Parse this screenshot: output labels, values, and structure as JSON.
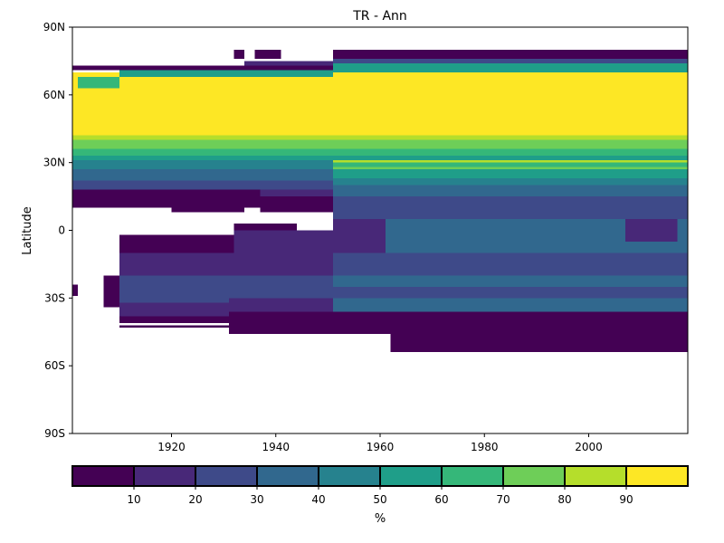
{
  "chart_data": {
    "type": "heatmap",
    "title": "TR - Ann",
    "ylabel": "Latitude",
    "xlabel": "",
    "xlim": [
      1901,
      2019
    ],
    "ylim": [
      -90,
      90
    ],
    "x_ticks": [
      1920,
      1940,
      1960,
      1980,
      2000
    ],
    "x_tick_labels": [
      "1920",
      "1940",
      "1960",
      "1980",
      "2000"
    ],
    "y_ticks": [
      -90,
      -60,
      -30,
      0,
      30,
      60,
      90
    ],
    "y_tick_labels": [
      "90S",
      "60S",
      "30S",
      "0",
      "30N",
      "60N",
      "90N"
    ],
    "grid": false,
    "colorbar": {
      "label": "%",
      "boundaries": [
        0,
        10,
        20,
        30,
        40,
        50,
        60,
        70,
        80,
        90,
        100
      ],
      "tick_values": [
        10,
        20,
        30,
        40,
        50,
        60,
        70,
        80,
        90
      ],
      "tick_labels": [
        "10",
        "20",
        "30",
        "40",
        "50",
        "60",
        "70",
        "80",
        "90"
      ],
      "colors": [
        "#440154",
        "#482878",
        "#3e4a89",
        "#31688e",
        "#26828e",
        "#1f9e89",
        "#35b779",
        "#6ece58",
        "#b5de2b",
        "#fde725"
      ]
    },
    "cells": [
      {
        "x": [
          1901,
          2019
        ],
        "lat": [
          42,
          70
        ],
        "value": 95
      },
      {
        "x": [
          1901,
          2019
        ],
        "lat": [
          40,
          42
        ],
        "value": 85
      },
      {
        "x": [
          1901,
          2019
        ],
        "lat": [
          36,
          40
        ],
        "value": 75
      },
      {
        "x": [
          1901,
          2019
        ],
        "lat": [
          33,
          36
        ],
        "value": 65
      },
      {
        "x": [
          1901,
          2019
        ],
        "lat": [
          31,
          33
        ],
        "value": 55
      },
      {
        "x": [
          1901,
          1951
        ],
        "lat": [
          27,
          31
        ],
        "value": 45
      },
      {
        "x": [
          1951,
          2019
        ],
        "lat": [
          30,
          31
        ],
        "value": 85
      },
      {
        "x": [
          1951,
          2019
        ],
        "lat": [
          28,
          30
        ],
        "value": 65
      },
      {
        "x": [
          1951,
          2019
        ],
        "lat": [
          27,
          28
        ],
        "value": 75
      },
      {
        "x": [
          1901,
          1951
        ],
        "lat": [
          22,
          27
        ],
        "value": 35
      },
      {
        "x": [
          1951,
          2019
        ],
        "lat": [
          23,
          27
        ],
        "value": 55
      },
      {
        "x": [
          1951,
          2019
        ],
        "lat": [
          20,
          23
        ],
        "value": 45
      },
      {
        "x": [
          1901,
          1951
        ],
        "lat": [
          18,
          22
        ],
        "value": 25
      },
      {
        "x": [
          1951,
          2019
        ],
        "lat": [
          15,
          20
        ],
        "value": 35
      },
      {
        "x": [
          1901,
          1937
        ],
        "lat": [
          10,
          18
        ],
        "value": 5
      },
      {
        "x": [
          1937,
          1951
        ],
        "lat": [
          15,
          18
        ],
        "value": 15
      },
      {
        "x": [
          1937,
          1951
        ],
        "lat": [
          8,
          15
        ],
        "value": 5
      },
      {
        "x": [
          1951,
          2019
        ],
        "lat": [
          10,
          15
        ],
        "value": 25
      },
      {
        "x": [
          1951,
          2019
        ],
        "lat": [
          5,
          10
        ],
        "value": 25
      },
      {
        "x": [
          1920,
          1934
        ],
        "lat": [
          8,
          10
        ],
        "value": 5
      },
      {
        "x": [
          1901,
          1903
        ],
        "lat": [
          10,
          12
        ],
        "value": 5
      },
      {
        "x": [
          1902,
          1910
        ],
        "lat": [
          63,
          68
        ],
        "value": 65
      },
      {
        "x": [
          1910,
          1951
        ],
        "lat": [
          68,
          71
        ],
        "value": 55
      },
      {
        "x": [
          1901,
          1951
        ],
        "lat": [
          71,
          73
        ],
        "value": 5
      },
      {
        "x": [
          1934,
          1951
        ],
        "lat": [
          73,
          75
        ],
        "value": 15
      },
      {
        "x": [
          1951,
          2019
        ],
        "lat": [
          70,
          74
        ],
        "value": 55
      },
      {
        "x": [
          1951,
          2019
        ],
        "lat": [
          74,
          76
        ],
        "value": 25
      },
      {
        "x": [
          1951,
          2019
        ],
        "lat": [
          76,
          80
        ],
        "value": 5
      },
      {
        "x": [
          1936,
          1941
        ],
        "lat": [
          76,
          80
        ],
        "value": 5
      },
      {
        "x": [
          1932,
          1934
        ],
        "lat": [
          76,
          80
        ],
        "value": 5
      },
      {
        "x": [
          1951,
          1961
        ],
        "lat": [
          -10,
          5
        ],
        "value": 15
      },
      {
        "x": [
          1961,
          2019
        ],
        "lat": [
          -10,
          5
        ],
        "value": 35
      },
      {
        "x": [
          2007,
          2017
        ],
        "lat": [
          -5,
          5
        ],
        "value": 15
      },
      {
        "x": [
          1932,
          1951
        ],
        "lat": [
          -10,
          0
        ],
        "value": 15
      },
      {
        "x": [
          1932,
          1944
        ],
        "lat": [
          0,
          3
        ],
        "value": 5
      },
      {
        "x": [
          1910,
          1932
        ],
        "lat": [
          -10,
          -2
        ],
        "value": 5
      },
      {
        "x": [
          1910,
          1951
        ],
        "lat": [
          -20,
          -10
        ],
        "value": 15
      },
      {
        "x": [
          1951,
          2019
        ],
        "lat": [
          -20,
          -10
        ],
        "value": 25
      },
      {
        "x": [
          1907,
          1910
        ],
        "lat": [
          -34,
          -20
        ],
        "value": 5
      },
      {
        "x": [
          1910,
          1931
        ],
        "lat": [
          -32,
          -20
        ],
        "value": 25
      },
      {
        "x": [
          1931,
          1951
        ],
        "lat": [
          -30,
          -20
        ],
        "value": 25
      },
      {
        "x": [
          1951,
          2019
        ],
        "lat": [
          -25,
          -20
        ],
        "value": 35
      },
      {
        "x": [
          1951,
          2019
        ],
        "lat": [
          -30,
          -25
        ],
        "value": 25
      },
      {
        "x": [
          1931,
          1951
        ],
        "lat": [
          -36,
          -30
        ],
        "value": 15
      },
      {
        "x": [
          1951,
          2019
        ],
        "lat": [
          -36,
          -30
        ],
        "value": 35
      },
      {
        "x": [
          1910,
          1931
        ],
        "lat": [
          -38,
          -32
        ],
        "value": 15
      },
      {
        "x": [
          1910,
          1931
        ],
        "lat": [
          -41,
          -38
        ],
        "value": 5
      },
      {
        "x": [
          1910,
          1931
        ],
        "lat": [
          -43,
          -42
        ],
        "value": 5
      },
      {
        "x": [
          1931,
          2019
        ],
        "lat": [
          -46,
          -36
        ],
        "value": 5
      },
      {
        "x": [
          1962,
          2019
        ],
        "lat": [
          -54,
          -46
        ],
        "value": 5
      },
      {
        "x": [
          1901,
          1902
        ],
        "lat": [
          -29,
          -24
        ],
        "value": 5
      }
    ]
  }
}
